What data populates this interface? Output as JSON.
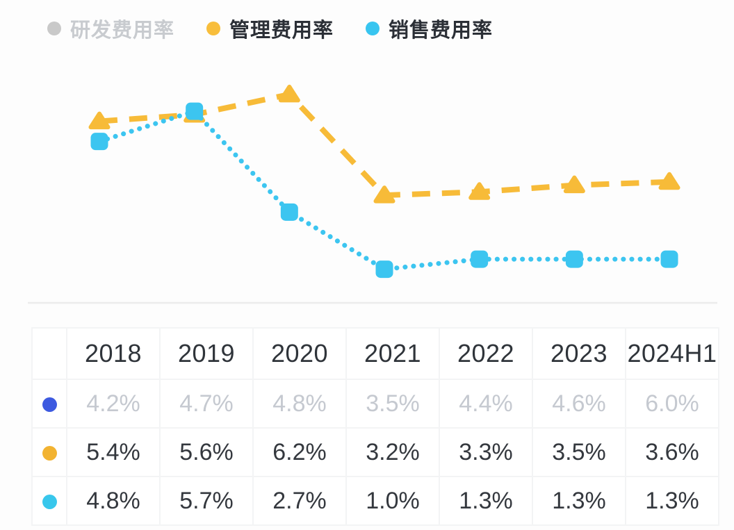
{
  "legend": {
    "items": [
      {
        "label": "研发费用率",
        "dot_color": "#c9c9c9",
        "active": false
      },
      {
        "label": "管理费用率",
        "dot_color": "#f8be3c",
        "active": true
      },
      {
        "label": "销售费用率",
        "dot_color": "#38c5f0",
        "active": true
      }
    ]
  },
  "chart_data": {
    "type": "line",
    "categories": [
      "2018",
      "2019",
      "2020",
      "2021",
      "2022",
      "2023",
      "2024H1"
    ],
    "series": [
      {
        "name": "研发费用率",
        "values": [
          4.2,
          4.7,
          4.8,
          3.5,
          4.4,
          4.6,
          6.0
        ],
        "color": "#3d5ae0",
        "visible": false,
        "marker": "circle",
        "line": "solid"
      },
      {
        "name": "管理费用率",
        "values": [
          5.4,
          5.6,
          6.2,
          3.2,
          3.3,
          3.5,
          3.6
        ],
        "color": "#f7bb38",
        "visible": true,
        "marker": "triangle",
        "line": "dashed"
      },
      {
        "name": "销售费用率",
        "values": [
          4.8,
          5.7,
          2.7,
          1.0,
          1.3,
          1.3,
          1.3
        ],
        "color": "#3cc5f0",
        "visible": true,
        "marker": "square",
        "line": "dotted"
      }
    ],
    "unit": "%",
    "ylim": [
      0,
      7
    ],
    "grid": false,
    "legend_position": "top-left",
    "title": "",
    "xlabel": "",
    "ylabel": ""
  },
  "table": {
    "columns": [
      "2018",
      "2019",
      "2020",
      "2021",
      "2022",
      "2023",
      "2024H1"
    ],
    "rows": [
      {
        "series": "研发费用率",
        "dot_color": "#3d5ae0",
        "muted": true,
        "values": [
          "4.2%",
          "4.7%",
          "4.8%",
          "3.5%",
          "4.4%",
          "4.6%",
          "6.0%"
        ]
      },
      {
        "series": "管理费用率",
        "dot_color": "#f2b331",
        "muted": false,
        "values": [
          "5.4%",
          "5.6%",
          "6.2%",
          "3.2%",
          "3.3%",
          "3.5%",
          "3.6%"
        ]
      },
      {
        "series": "销售费用率",
        "dot_color": "#38c7ec",
        "muted": false,
        "values": [
          "4.8%",
          "5.7%",
          "2.7%",
          "1.0%",
          "1.3%",
          "1.3%",
          "1.3%"
        ]
      }
    ]
  }
}
